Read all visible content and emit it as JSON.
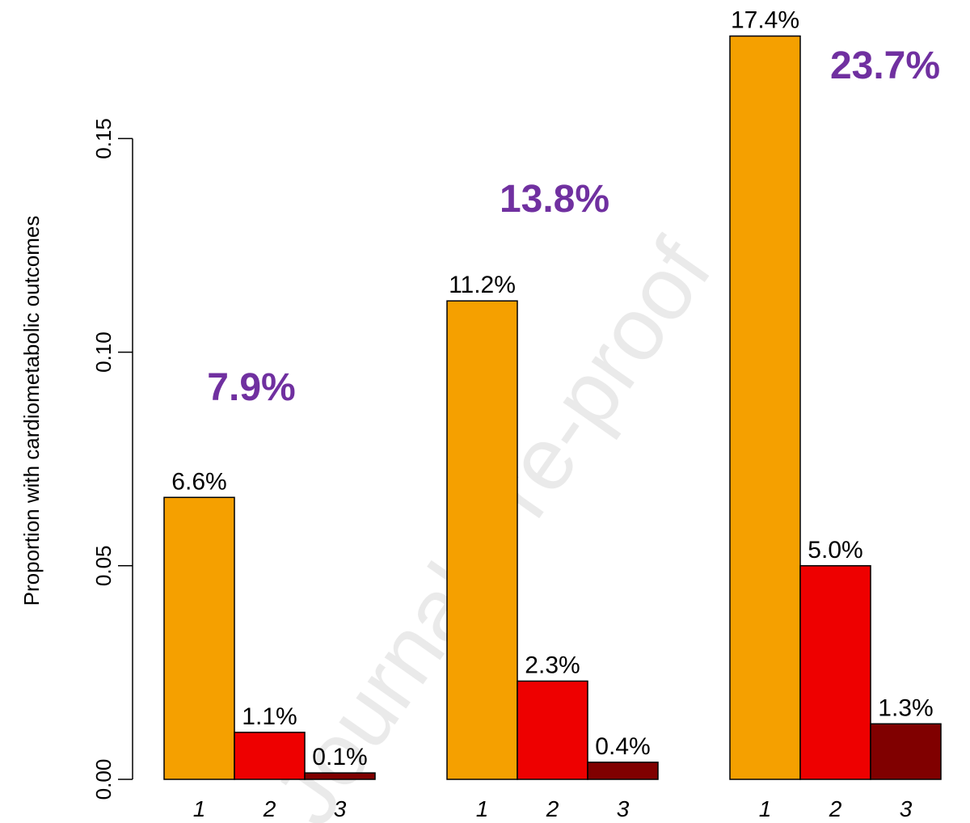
{
  "chart_data": {
    "type": "bar",
    "ylabel": "Proportion with cardiometabolic outcomes",
    "ylim": [
      0,
      0.18
    ],
    "yticks": [
      "0.00",
      "0.05",
      "0.10",
      "0.15"
    ],
    "ytick_values": [
      0,
      0.05,
      0.1,
      0.15
    ],
    "categories": [
      "1",
      "2",
      "3"
    ],
    "colors": [
      "#f5a000",
      "#ee0000",
      "#800000"
    ],
    "groups": [
      {
        "values": [
          0.066,
          0.011,
          0.0015
        ],
        "labels": [
          "6.6%",
          "1.1%",
          "0.1%"
        ],
        "total": "7.9%"
      },
      {
        "values": [
          0.112,
          0.023,
          0.004
        ],
        "labels": [
          "11.2%",
          "2.3%",
          "0.4%"
        ],
        "total": "13.8%"
      },
      {
        "values": [
          0.174,
          0.05,
          0.013
        ],
        "labels": [
          "17.4%",
          "5.0%",
          "1.3%"
        ],
        "total": "23.7%"
      }
    ]
  },
  "watermark": "Journal Pre-proof"
}
